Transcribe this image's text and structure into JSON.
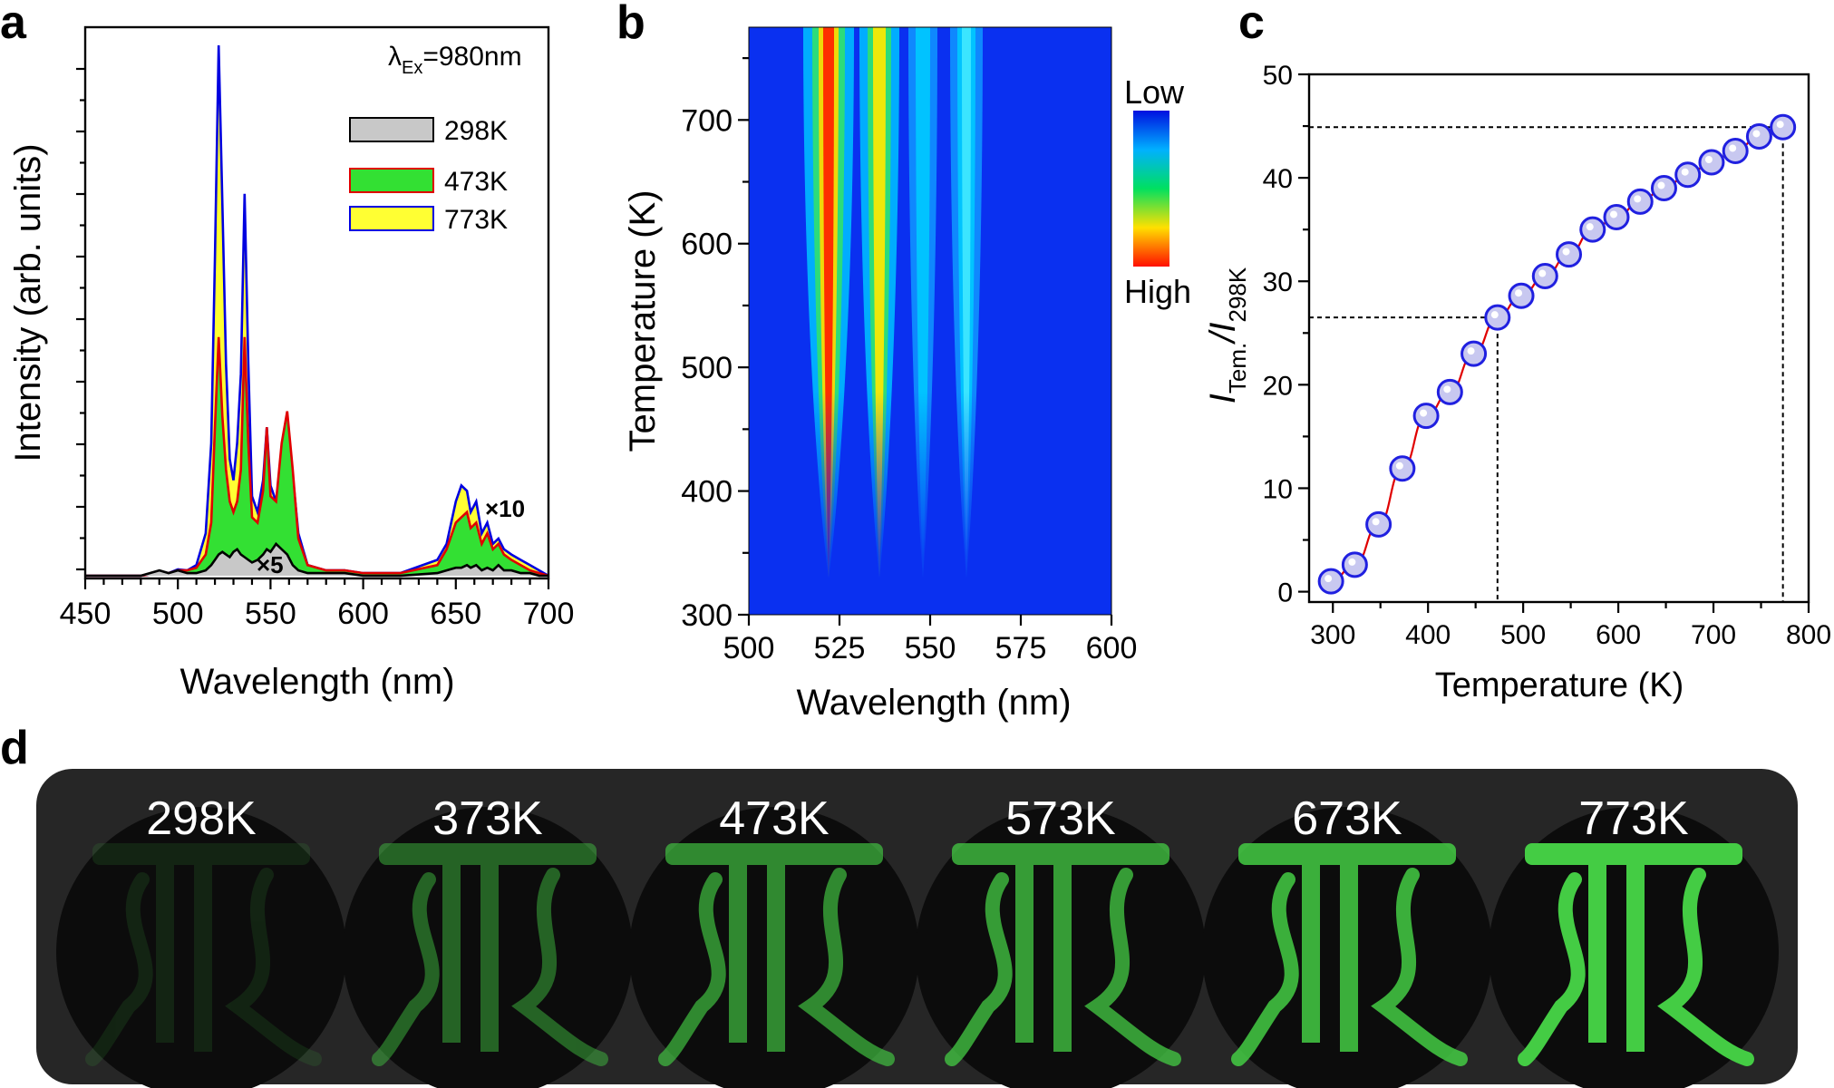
{
  "panel_letters": {
    "a": "a",
    "b": "b",
    "c": "c",
    "d": "d"
  },
  "colors": {
    "s298_fill": "#c8c8c8",
    "s298_line": "#000000",
    "s473_fill": "#33e033",
    "s473_line": "#e00000",
    "s773_fill": "#ffff33",
    "s773_line": "#0000e0",
    "fit_line": "#e00000",
    "marker": "#2020e0",
    "photo_bg": "#262626",
    "photo_glow": "#44cc44"
  },
  "chart_data": [
    {
      "id": "a",
      "type": "area",
      "title": "",
      "xlabel": "Wavelength (nm)",
      "ylabel": "Intensity (arb. units)",
      "xlim": [
        450,
        700
      ],
      "ylim": [
        0,
        1.0
      ],
      "xticks": [
        450,
        500,
        550,
        600,
        650,
        700
      ],
      "annotation": "λEx=980nm",
      "annotation_main": "λ",
      "annotation_sub": "Ex",
      "annotation_rest": "=980nm",
      "mult_green": "×5",
      "mult_red": "×10",
      "x": [
        450,
        480,
        490,
        495,
        500,
        505,
        510,
        515,
        518,
        520,
        522,
        524,
        526,
        528,
        530,
        532,
        534,
        536,
        538,
        540,
        543,
        546,
        548,
        550,
        553,
        556,
        559,
        562,
        565,
        570,
        580,
        590,
        600,
        620,
        640,
        645,
        650,
        653,
        656,
        658,
        661,
        664,
        667,
        670,
        673,
        676,
        680,
        685,
        690,
        695,
        700
      ],
      "series": [
        {
          "name": "298K",
          "values": [
            0,
            0,
            0.01,
            0.005,
            0.01,
            0.005,
            0.005,
            0.01,
            0.02,
            0.03,
            0.04,
            0.045,
            0.04,
            0.035,
            0.045,
            0.05,
            0.04,
            0.035,
            0.03,
            0.025,
            0.03,
            0.04,
            0.05,
            0.045,
            0.06,
            0.05,
            0.04,
            0.02,
            0.01,
            0.005,
            0.005,
            0.005,
            0,
            0,
            0.005,
            0.01,
            0.015,
            0.015,
            0.02,
            0.015,
            0.02,
            0.01,
            0.015,
            0.01,
            0.02,
            0.01,
            0.01,
            0.005,
            0.005,
            0,
            0
          ]
        },
        {
          "name": "473K",
          "values": [
            0,
            0,
            0.005,
            0.005,
            0.01,
            0.01,
            0.015,
            0.04,
            0.1,
            0.28,
            0.45,
            0.3,
            0.2,
            0.14,
            0.12,
            0.14,
            0.2,
            0.45,
            0.25,
            0.11,
            0.1,
            0.16,
            0.28,
            0.15,
            0.14,
            0.25,
            0.31,
            0.2,
            0.07,
            0.02,
            0.01,
            0.01,
            0.005,
            0.005,
            0.02,
            0.05,
            0.1,
            0.11,
            0.12,
            0.09,
            0.1,
            0.06,
            0.08,
            0.05,
            0.06,
            0.04,
            0.03,
            0.02,
            0.01,
            0.005,
            0
          ]
        },
        {
          "name": "773K",
          "values": [
            0,
            0,
            0.005,
            0.005,
            0.012,
            0.01,
            0.02,
            0.08,
            0.25,
            0.6,
            1.0,
            0.7,
            0.4,
            0.22,
            0.18,
            0.25,
            0.38,
            0.72,
            0.4,
            0.15,
            0.12,
            0.18,
            0.28,
            0.17,
            0.14,
            0.22,
            0.28,
            0.19,
            0.08,
            0.02,
            0.01,
            0.01,
            0.005,
            0.005,
            0.03,
            0.06,
            0.14,
            0.17,
            0.16,
            0.12,
            0.14,
            0.08,
            0.1,
            0.06,
            0.07,
            0.05,
            0.04,
            0.03,
            0.02,
            0.01,
            0
          ]
        }
      ]
    },
    {
      "id": "b",
      "type": "heatmap",
      "title": "",
      "xlabel": "Wavelength (nm)",
      "ylabel": "Temperature (K)",
      "xlim": [
        500,
        600
      ],
      "ylim": [
        300,
        775
      ],
      "xticks": [
        500,
        525,
        550,
        575,
        600
      ],
      "yticks": [
        300,
        400,
        500,
        600,
        700
      ],
      "colorbar_low": "Low",
      "colorbar_high": "High",
      "peaks_nm": [
        522,
        536,
        548,
        560
      ]
    },
    {
      "id": "c",
      "type": "scatter",
      "title": "",
      "xlabel": "Temperature (K)",
      "ylabel_main_top": "I",
      "ylabel_sub_top": "Tem.",
      "ylabel_main_bottom": "/I",
      "ylabel_sub_bottom": "298K",
      "xlim": [
        275,
        800
      ],
      "ylim": [
        -1,
        50
      ],
      "xticks": [
        300,
        400,
        500,
        600,
        700,
        800
      ],
      "yticks": [
        0,
        10,
        20,
        30,
        40,
        50
      ],
      "x": [
        298,
        323,
        348,
        373,
        398,
        423,
        448,
        473,
        498,
        523,
        548,
        573,
        598,
        623,
        648,
        673,
        698,
        723,
        748,
        773
      ],
      "y": [
        1.0,
        2.6,
        6.5,
        11.9,
        17.0,
        19.3,
        23.0,
        26.5,
        28.6,
        30.5,
        32.6,
        35.0,
        36.2,
        37.7,
        39.0,
        40.3,
        41.5,
        42.6,
        44.0,
        44.9
      ],
      "guides": [
        {
          "x": 473,
          "y": 26.5
        },
        {
          "x": 773,
          "y": 44.9
        }
      ]
    }
  ],
  "photos": {
    "labels": [
      "298K",
      "373K",
      "473K",
      "573K",
      "673K",
      "773K"
    ],
    "brightness": [
      0.12,
      0.45,
      0.65,
      0.75,
      0.85,
      1.0
    ]
  }
}
